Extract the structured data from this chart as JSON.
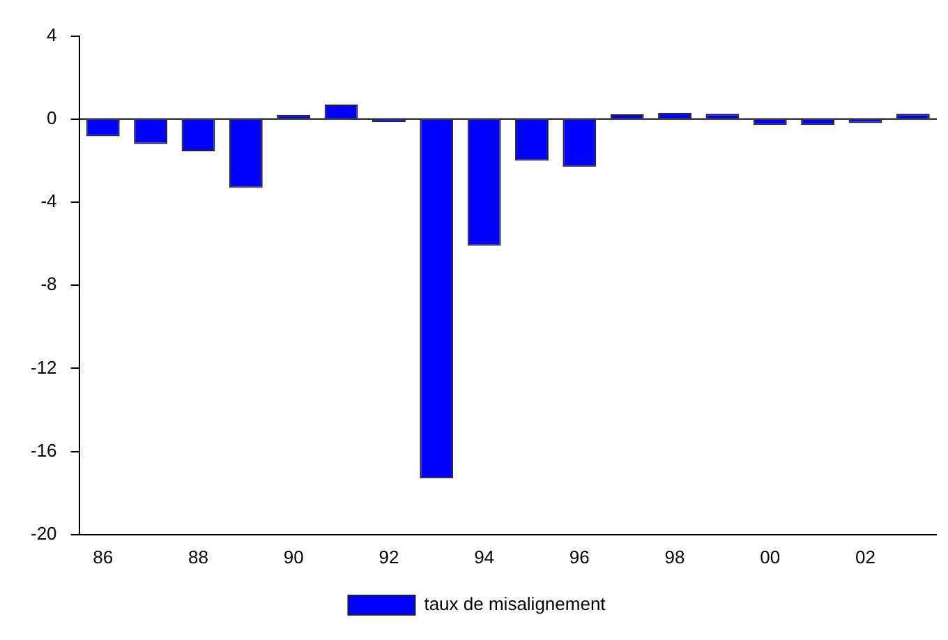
{
  "chart_data": {
    "type": "bar",
    "categories": [
      "86",
      null,
      "88",
      null,
      "90",
      null,
      "92",
      null,
      "94",
      null,
      "96",
      null,
      "98",
      null,
      "00",
      null,
      "02",
      null
    ],
    "series": [
      {
        "name": "taux de misalignement",
        "color": "#0000ff",
        "values": [
          -0.83,
          -1.2,
          -1.55,
          -3.3,
          0.2,
          0.7,
          -0.15,
          -17.3,
          -6.1,
          -2.0,
          -2.3,
          0.23,
          0.3,
          0.25,
          -0.28,
          -0.28,
          -0.19,
          0.25
        ]
      }
    ],
    "ylim": [
      -20,
      4
    ],
    "yticks": [
      -20,
      -16,
      -12,
      -8,
      -4,
      0,
      4
    ],
    "ref_lines": [
      {
        "axis": "y",
        "value": 0
      }
    ],
    "grid": false,
    "legend": "bottom"
  }
}
